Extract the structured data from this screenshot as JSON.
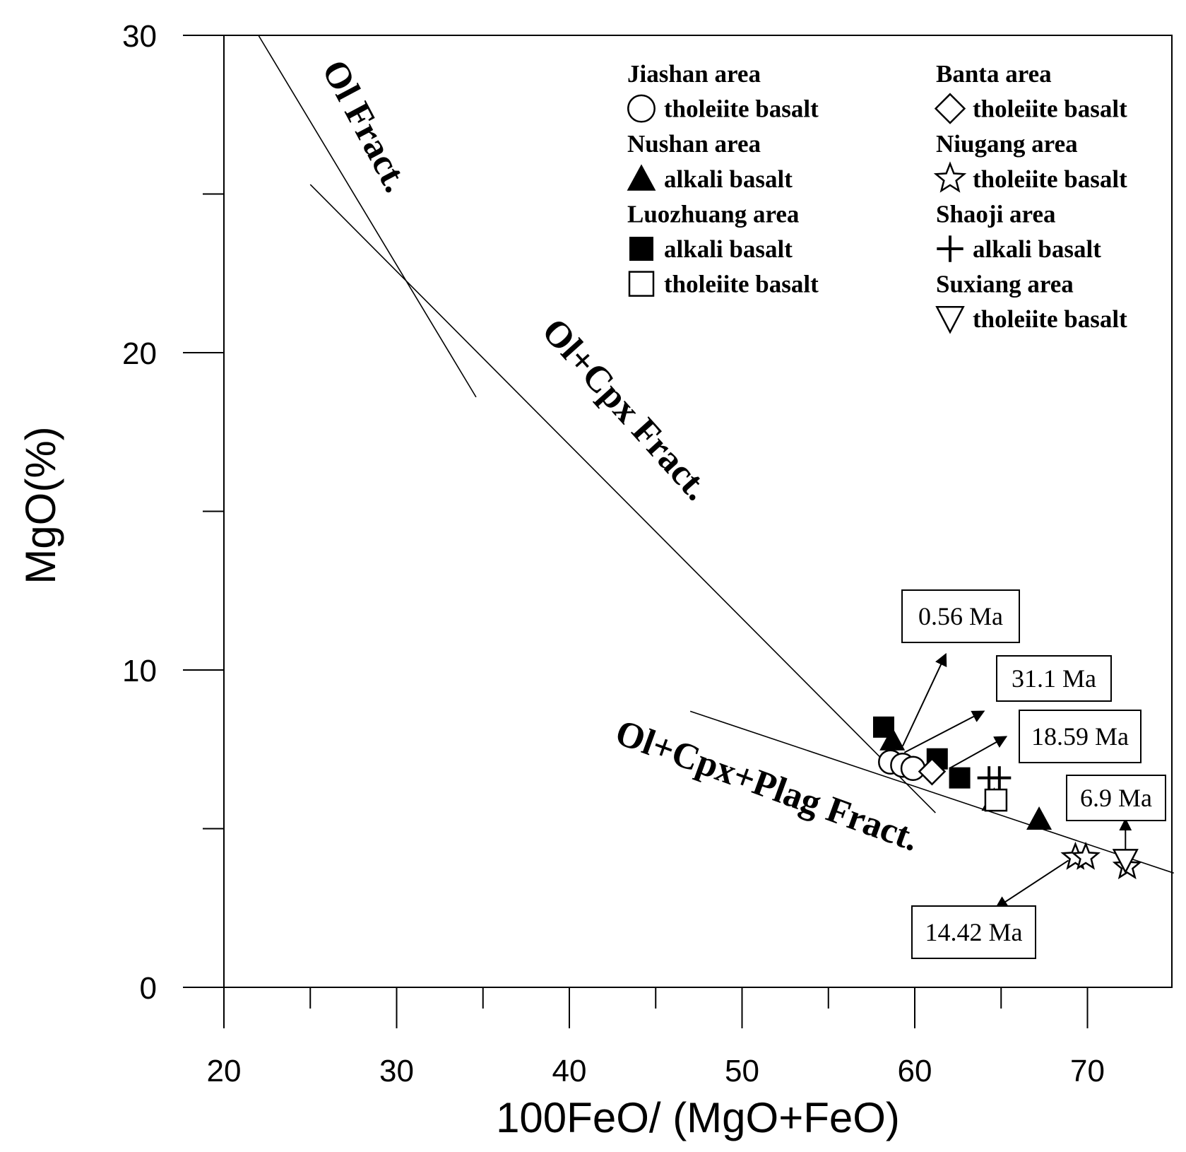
{
  "chart_data": {
    "type": "scatter",
    "xlabel": "100FeO/ (MgO+FeO)",
    "ylabel": "MgO(%)",
    "xlim": [
      17.7,
      75
    ],
    "ylim": [
      0,
      30
    ],
    "x_ticks": [
      20,
      30,
      40,
      50,
      60,
      70
    ],
    "y_ticks": [
      0,
      10,
      20,
      30
    ],
    "x_minor_ticks": [
      25,
      35,
      45,
      55,
      65
    ],
    "y_minor_ticks": [
      5,
      15,
      25
    ],
    "legend": [
      {
        "header": "Jiashan area",
        "entries": [
          {
            "marker": "circle-open",
            "label": "tholeiite basalt"
          }
        ]
      },
      {
        "header": "Nushan area",
        "entries": [
          {
            "marker": "triangle-filled",
            "label": "alkali basalt"
          }
        ]
      },
      {
        "header": "Luozhuang  area",
        "entries": [
          {
            "marker": "square-filled",
            "label": "alkali basalt"
          },
          {
            "marker": "square-open",
            "label": "tholeiite basalt"
          }
        ]
      },
      {
        "header": "Banta  area",
        "entries": [
          {
            "marker": "diamond-open",
            "label": "tholeiite basalt"
          }
        ]
      },
      {
        "header": "Niugang area",
        "entries": [
          {
            "marker": "star-open",
            "label": "tholeiite basalt"
          }
        ]
      },
      {
        "header": "Shaoji area",
        "entries": [
          {
            "marker": "plus",
            "label": "alkali basalt"
          }
        ]
      },
      {
        "header": "Suxiang area",
        "entries": [
          {
            "marker": "triangle-down-open",
            "label": "tholeiite basalt"
          }
        ]
      }
    ],
    "trend_lines": [
      {
        "label": "Ol Fract.",
        "points": [
          [
            22,
            30
          ],
          [
            34.6,
            18.6
          ]
        ]
      },
      {
        "label": "Ol+Cpx Fract.",
        "points": [
          [
            25,
            25.3
          ],
          [
            61.2,
            5.5
          ]
        ]
      },
      {
        "label": "Ol+Cpx+Plag Fract.",
        "points": [
          [
            47,
            8.7
          ],
          [
            75,
            3.6
          ]
        ]
      }
    ],
    "trend_labels": [
      "Ol Fract.",
      "Ol+Cpx Fract.",
      "Ol+Cpx+Plag Fract."
    ],
    "series": [
      {
        "name": "Jiashan area tholeiite basalt",
        "marker": "circle-open",
        "points": [
          [
            58.6,
            7.1
          ],
          [
            59.3,
            7.0
          ],
          [
            59.9,
            6.9
          ]
        ]
      },
      {
        "name": "Nushan area alkali basalt",
        "marker": "triangle-filled",
        "points": [
          [
            58.7,
            7.8
          ],
          [
            64.6,
            5.9
          ],
          [
            67.2,
            5.3
          ]
        ]
      },
      {
        "name": "Luozhuang area alkali basalt",
        "marker": "square-filled",
        "points": [
          [
            58.2,
            8.2
          ],
          [
            61.3,
            7.2
          ],
          [
            62.6,
            6.6
          ]
        ]
      },
      {
        "name": "Luozhuang area tholeiite basalt",
        "marker": "square-open",
        "points": [
          [
            64.7,
            5.9
          ]
        ]
      },
      {
        "name": "Banta area tholeiite basalt",
        "marker": "diamond-open",
        "points": [
          [
            61.0,
            6.8
          ]
        ]
      },
      {
        "name": "Niugang area tholeiite basalt",
        "marker": "star-open",
        "points": [
          [
            69.3,
            4.1
          ],
          [
            69.9,
            4.1
          ],
          [
            72.3,
            3.8
          ]
        ]
      },
      {
        "name": "Shaoji area alkali basalt",
        "marker": "plus",
        "points": [
          [
            64.3,
            6.6
          ],
          [
            64.9,
            6.6
          ]
        ]
      },
      {
        "name": "Suxiang area tholeiite basalt",
        "marker": "triangle-down-open",
        "points": [
          [
            72.2,
            4.0
          ]
        ]
      }
    ],
    "annotations": [
      {
        "text": "0.56  Ma",
        "from": [
          59.3,
          7.6
        ],
        "to": [
          61.8,
          10.5
        ]
      },
      {
        "text": "31.1  Ma",
        "from": [
          59.4,
          7.4
        ],
        "to": [
          64.0,
          8.7
        ]
      },
      {
        "text": "18.59  Ma",
        "from": [
          62.0,
          6.9
        ],
        "to": [
          65.3,
          7.9
        ]
      },
      {
        "text": "6.9  Ma",
        "from": [
          72.2,
          4.1
        ],
        "to": [
          72.2,
          5.3
        ]
      },
      {
        "text": "14.42  Ma",
        "from": [
          68.9,
          4.0
        ],
        "to": [
          64.7,
          2.5
        ]
      }
    ]
  }
}
